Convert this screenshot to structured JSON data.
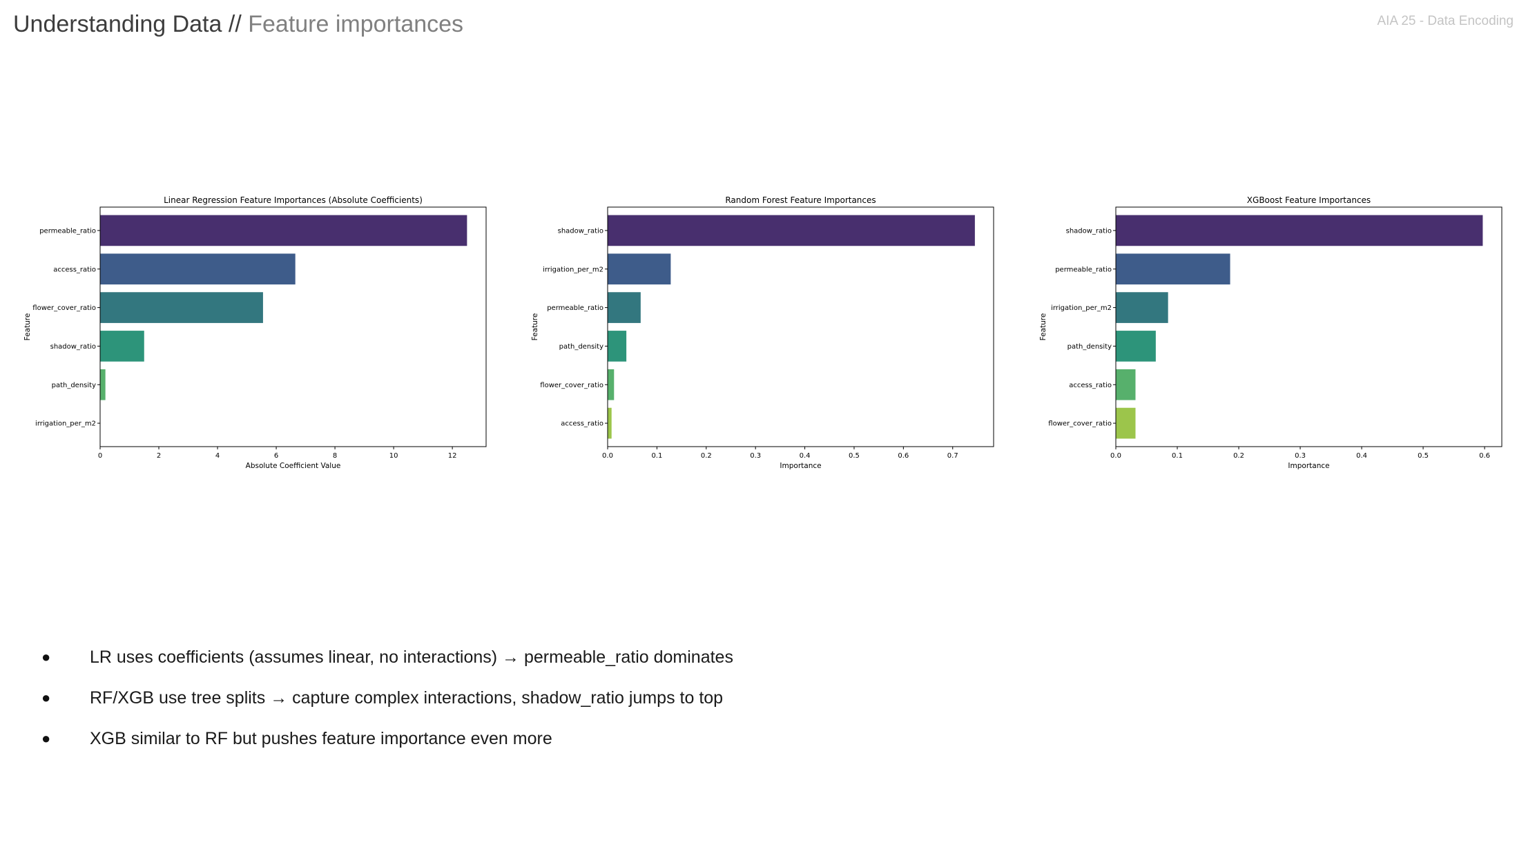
{
  "header": {
    "title_main": "Understanding Data",
    "title_sep": "//",
    "title_sub": "Feature importances",
    "corner_tag": "AIA 25 - Data Encoding"
  },
  "palette": [
    "#482f6e",
    "#3e5c8a",
    "#33777f",
    "#2d947a",
    "#57b06c",
    "#9cc54b"
  ],
  "chart_data": [
    {
      "type": "bar",
      "orientation": "horizontal",
      "title": "Linear Regression Feature Importances (Absolute Coefficients)",
      "xlabel": "Absolute Coefficient Value",
      "ylabel": "Feature",
      "categories": [
        "permeable_ratio",
        "access_ratio",
        "flower_cover_ratio",
        "shadow_ratio",
        "path_density",
        "irrigation_per_m2"
      ],
      "values": [
        12.5,
        6.65,
        5.55,
        1.5,
        0.18,
        0.0
      ],
      "xlim": [
        0,
        13.15
      ],
      "xticks": [
        0,
        2,
        4,
        6,
        8,
        10,
        12
      ],
      "xtick_labels": [
        "0",
        "2",
        "4",
        "6",
        "8",
        "10",
        "12"
      ]
    },
    {
      "type": "bar",
      "orientation": "horizontal",
      "title": "Random Forest Feature Importances",
      "xlabel": "Importance",
      "ylabel": "Feature",
      "categories": [
        "shadow_ratio",
        "irrigation_per_m2",
        "permeable_ratio",
        "path_density",
        "flower_cover_ratio",
        "access_ratio"
      ],
      "values": [
        0.745,
        0.128,
        0.067,
        0.038,
        0.013,
        0.008
      ],
      "xlim": [
        0,
        0.783
      ],
      "xticks": [
        0,
        0.1,
        0.2,
        0.3,
        0.4,
        0.5,
        0.6,
        0.7
      ],
      "xtick_labels": [
        "0.0",
        "0.1",
        "0.2",
        "0.3",
        "0.4",
        "0.5",
        "0.6",
        "0.7"
      ]
    },
    {
      "type": "bar",
      "orientation": "horizontal",
      "title": "XGBoost Feature Importances",
      "xlabel": "Importance",
      "ylabel": "Feature",
      "categories": [
        "shadow_ratio",
        "permeable_ratio",
        "irrigation_per_m2",
        "path_density",
        "access_ratio",
        "flower_cover_ratio"
      ],
      "values": [
        0.597,
        0.186,
        0.085,
        0.065,
        0.032,
        0.032
      ],
      "xlim": [
        0,
        0.628
      ],
      "xticks": [
        0,
        0.1,
        0.2,
        0.3,
        0.4,
        0.5,
        0.6
      ],
      "xtick_labels": [
        "0.0",
        "0.1",
        "0.2",
        "0.3",
        "0.4",
        "0.5",
        "0.6"
      ]
    }
  ],
  "bullets": [
    "LR uses coefficients (assumes linear, no interactions) → permeable_ratio dominates",
    "RF/XGB use tree splits → capture complex interactions, shadow_ratio jumps to top",
    "XGB similar to RF but pushes feature importance even more"
  ],
  "bullet_symbol": "●"
}
